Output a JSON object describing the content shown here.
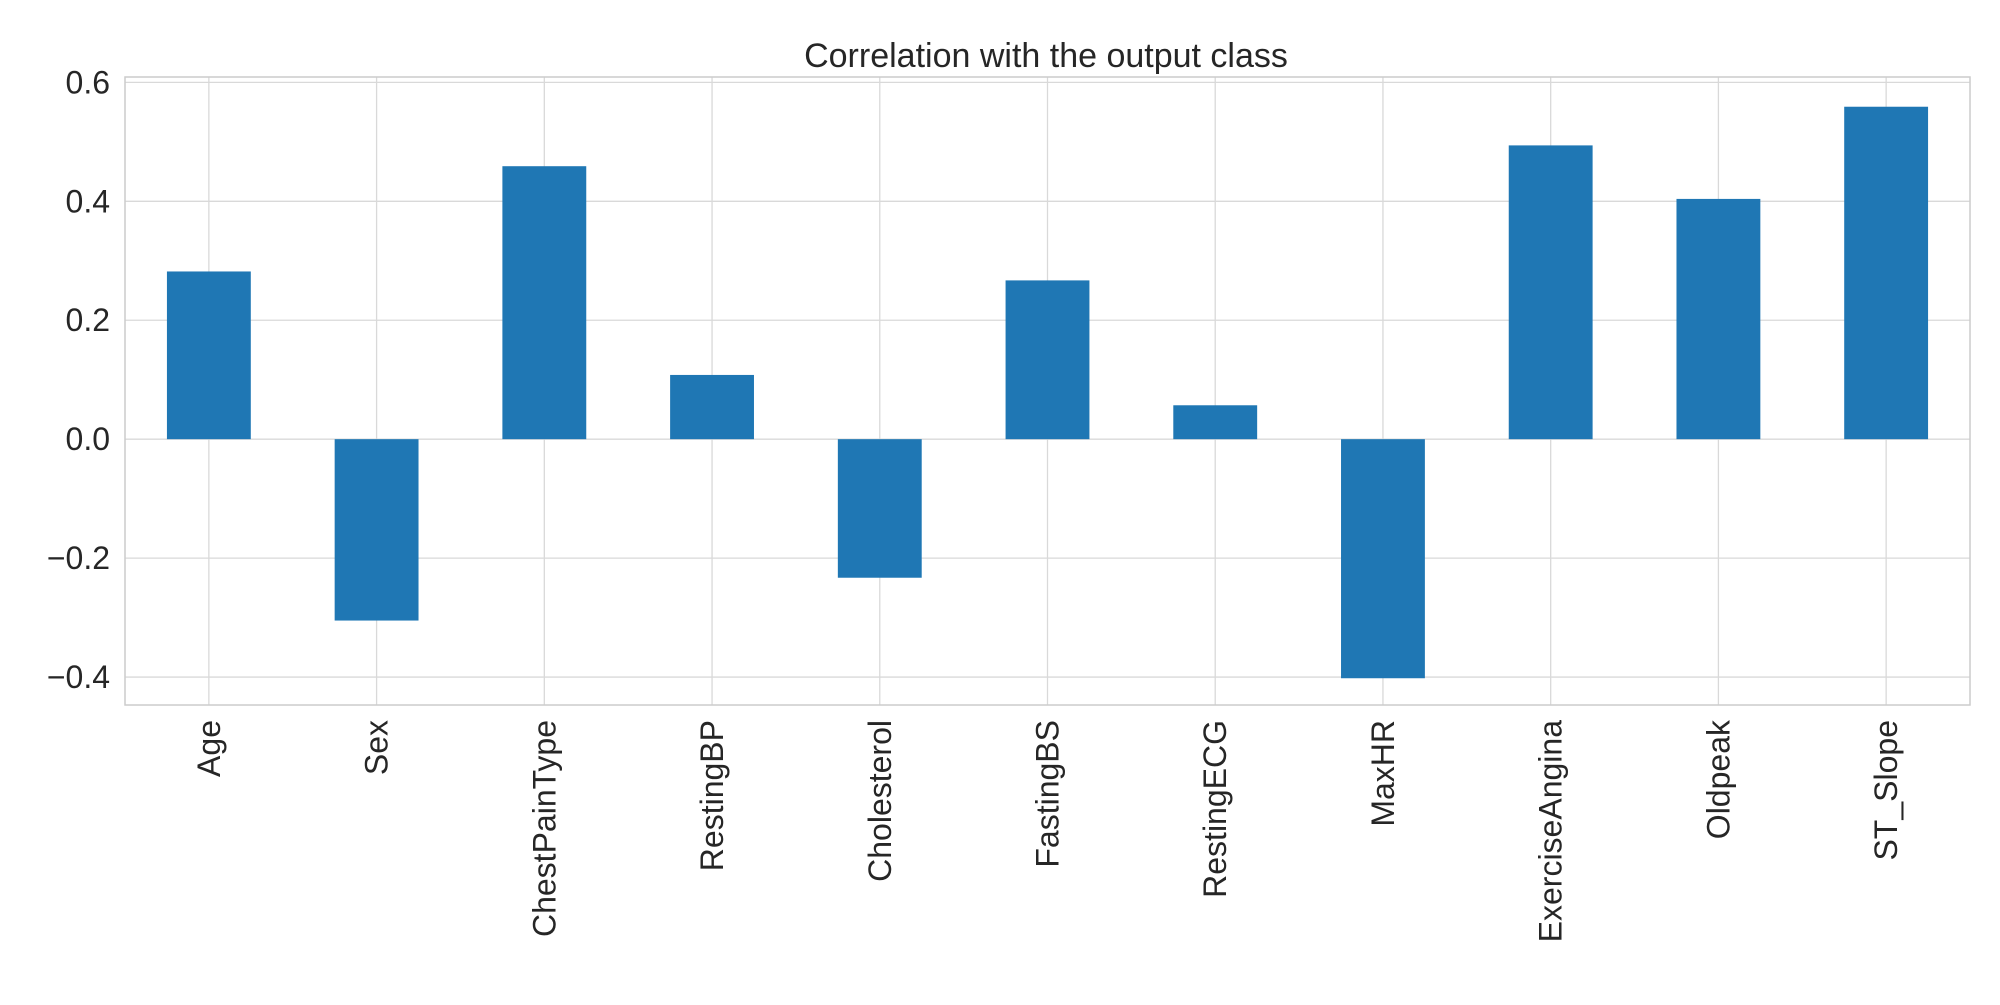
{
  "chart_data": {
    "type": "bar",
    "title": "Correlation with the output class",
    "xlabel": "",
    "ylabel": "",
    "categories": [
      "Age",
      "Sex",
      "ChestPainType",
      "RestingBP",
      "Cholesterol",
      "FastingBS",
      "RestingECG",
      "MaxHR",
      "ExerciseAngina",
      "Oldpeak",
      "ST_Slope"
    ],
    "values": [
      0.282,
      -0.305,
      0.459,
      0.108,
      -0.233,
      0.267,
      0.057,
      -0.402,
      0.494,
      0.404,
      0.559
    ],
    "ylim": [
      -0.447,
      0.609
    ],
    "yticks": [
      0.6,
      0.4,
      0.2,
      0.0,
      -0.2,
      -0.4
    ],
    "ytick_labels": [
      "0.6",
      "0.4",
      "0.2",
      "0.0",
      "−0.2",
      "−0.4"
    ],
    "grid": true,
    "bar_color": "#1f77b4",
    "grid_color": "#d9d9d9",
    "background": "#ffffff"
  }
}
